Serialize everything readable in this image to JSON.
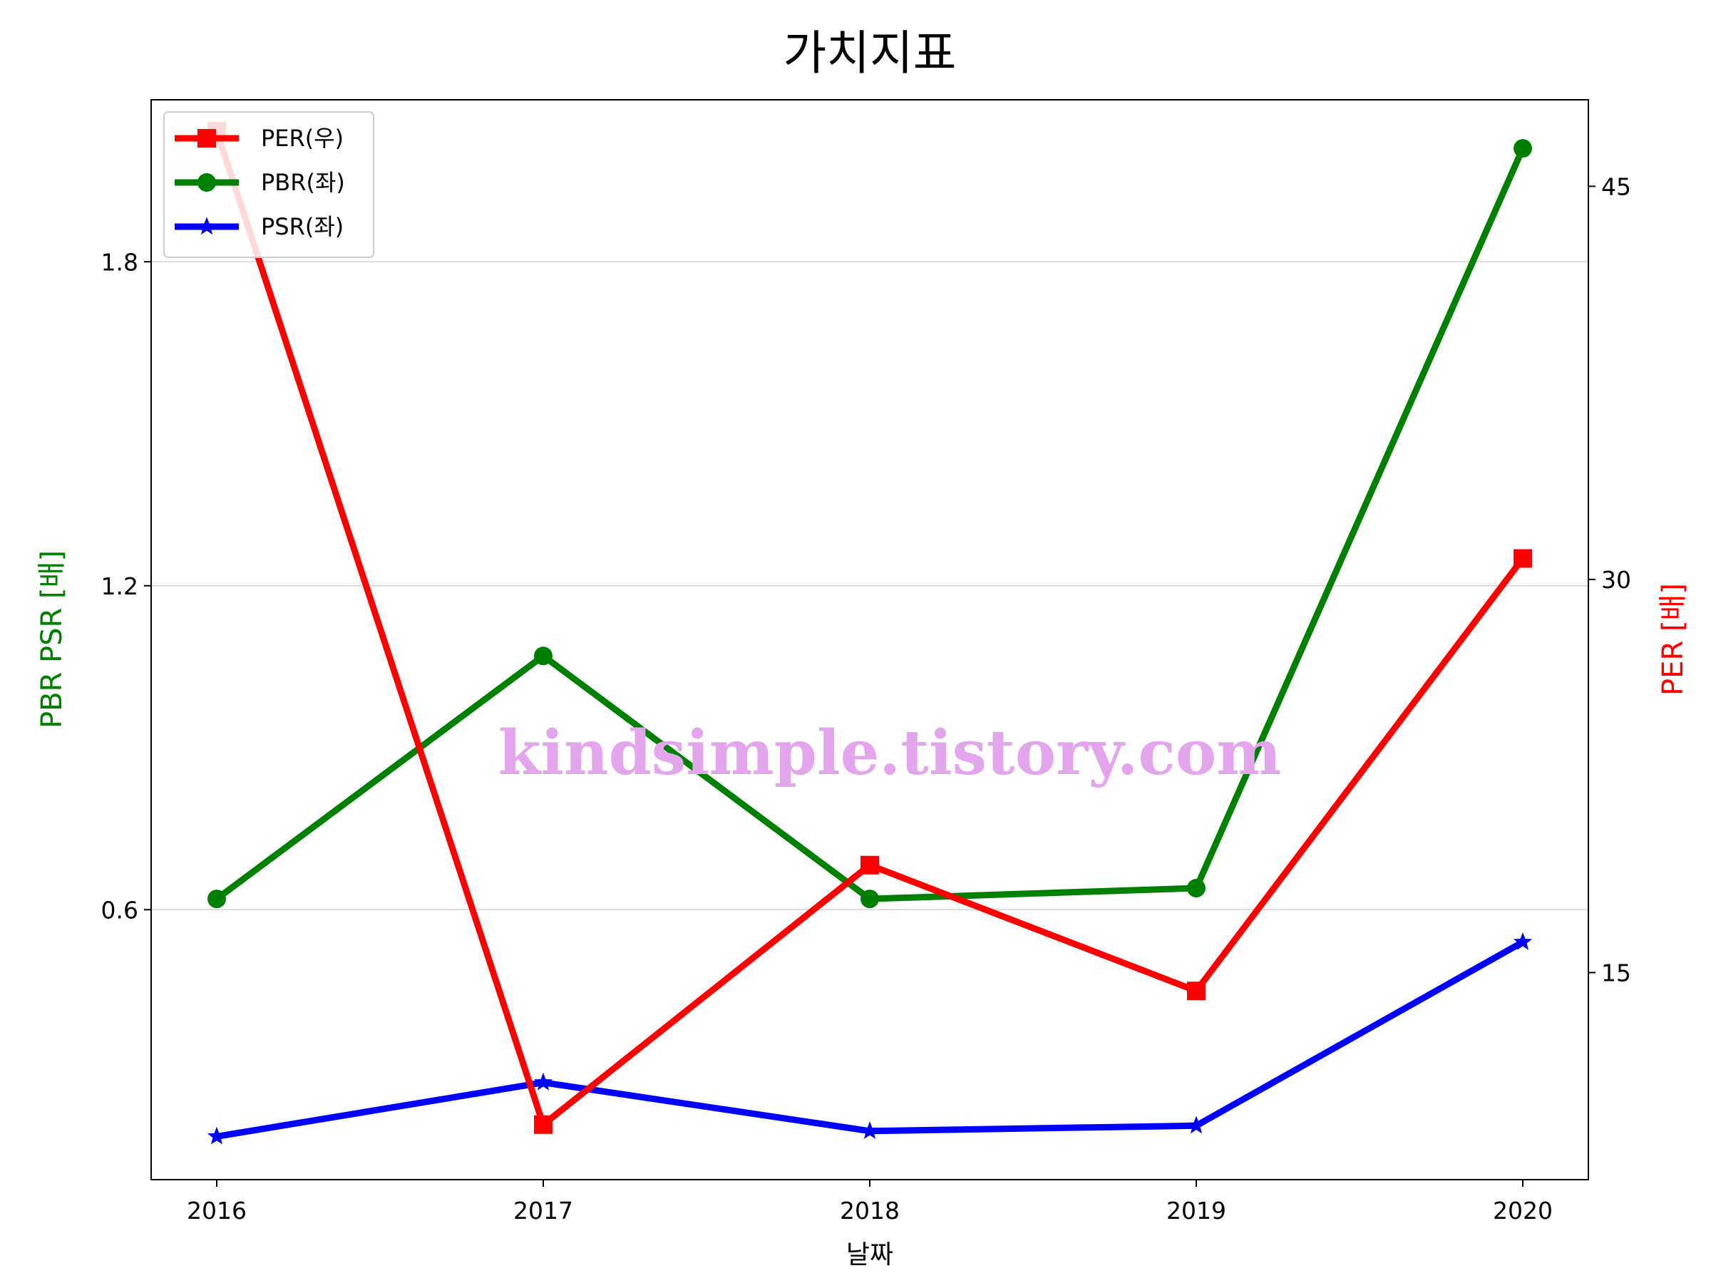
{
  "chart_data": {
    "type": "line",
    "title": "가치지표",
    "xlabel": "날짜",
    "ylabel_left": "PBR PSR [배]",
    "ylabel_right": "PER [배]",
    "categories": [
      "2016",
      "2017",
      "2018",
      "2019",
      "2020"
    ],
    "ylim_left": [
      0.1,
      2.1
    ],
    "yticks_left": [
      0.6,
      1.2,
      1.8
    ],
    "ytick_labels_left": [
      "0.6",
      "1.2",
      "1.8"
    ],
    "ylim_right": [
      7.1,
      48.3
    ],
    "yticks_right": [
      15,
      30,
      45
    ],
    "ytick_labels_right": [
      "15",
      "30",
      "45"
    ],
    "grid": "horizontal lines at left-axis ticks",
    "legend_position": "top-left",
    "series": [
      {
        "name": "PER(우)",
        "axis": "right",
        "color": "#ff0000",
        "marker": "square",
        "values": [
          47.1,
          9.2,
          19.1,
          14.3,
          30.8
        ]
      },
      {
        "name": "PBR(좌)",
        "axis": "left",
        "color": "#008000",
        "marker": "circle",
        "values": [
          0.62,
          1.07,
          0.62,
          0.64,
          2.01
        ]
      },
      {
        "name": "PSR(좌)",
        "axis": "left",
        "color": "#0000ff",
        "marker": "star",
        "values": [
          0.18,
          0.28,
          0.19,
          0.2,
          0.54
        ]
      }
    ],
    "watermark": "kindsimple.tistory.com"
  }
}
